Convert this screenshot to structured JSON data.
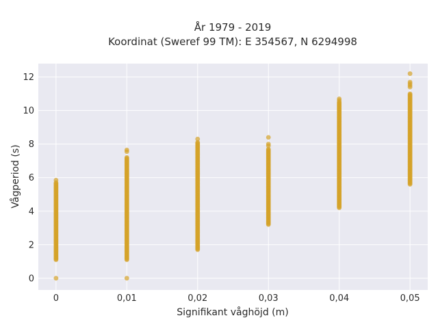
{
  "chart_data": {
    "type": "scatter",
    "title": [
      "År 1979 - 2019",
      "Koordinat (Sweref 99 TM): E 354567, N 6294998"
    ],
    "xlabel": "Signifikant våghöjd (m)",
    "ylabel": "Vågperiod (s)",
    "xlim": [
      -0.0025,
      0.0525
    ],
    "ylim": [
      -0.7,
      12.8
    ],
    "x_ticks": [
      0,
      0.01,
      0.02,
      0.03,
      0.04,
      0.05
    ],
    "x_tick_labels": [
      "0",
      "0,01",
      "0,02",
      "0,03",
      "0,04",
      "0,05"
    ],
    "y_ticks": [
      0,
      2,
      4,
      6,
      8,
      10,
      12
    ],
    "y_tick_labels": [
      "0",
      "2",
      "4",
      "6",
      "8",
      "10",
      "12"
    ],
    "grid": true,
    "marker_color": "#d4a22a",
    "plot_background": "#e9e9f1",
    "grid_color": "#ffffff",
    "columns": [
      {
        "x": 0,
        "y_min": 1.1,
        "y_max": 5.7,
        "extra_points": [
          0,
          5.85
        ]
      },
      {
        "x": 0.01,
        "y_min": 1.1,
        "y_max": 7.2,
        "extra_points": [
          0,
          7.55,
          7.65
        ]
      },
      {
        "x": 0.02,
        "y_min": 1.7,
        "y_max": 8.1,
        "extra_points": [
          8.3
        ]
      },
      {
        "x": 0.03,
        "y_min": 3.2,
        "y_max": 7.7,
        "extra_points": [
          7.9,
          8.0,
          8.4
        ]
      },
      {
        "x": 0.04,
        "y_min": 4.2,
        "y_max": 10.5,
        "extra_points": [
          10.6,
          10.7
        ]
      },
      {
        "x": 0.05,
        "y_min": 5.6,
        "y_max": 11.0,
        "extra_points": [
          11.4,
          11.5,
          11.6,
          11.7,
          12.2
        ]
      }
    ]
  }
}
